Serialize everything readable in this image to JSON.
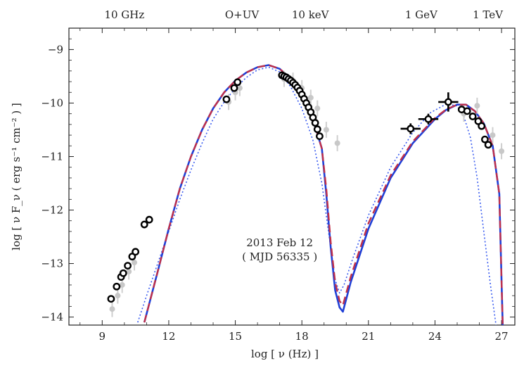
{
  "chart_data": {
    "type": "scatter",
    "xlabel": "log [ ν (Hz) ]",
    "ylabel": "log [ ν F_ν ( erg s⁻¹ cm⁻² ) ]",
    "xlim": [
      7.5,
      27.6
    ],
    "ylim": [
      -14.15,
      -8.6
    ],
    "x_ticks": [
      9,
      12,
      15,
      18,
      21,
      24,
      27
    ],
    "y_ticks": [
      -14,
      -13,
      -12,
      -11,
      -10,
      -9
    ],
    "x_tick_labels": [
      "9",
      "12",
      "15",
      "18",
      "21",
      "24",
      "27"
    ],
    "y_tick_labels": [
      "−14",
      "−13",
      "−12",
      "−11",
      "−10",
      "−9"
    ],
    "top_labels": [
      {
        "x": 10.0,
        "text": "10 GHz"
      },
      {
        "x": 15.3,
        "text": "O+UV"
      },
      {
        "x": 18.38,
        "text": "10 keV"
      },
      {
        "x": 23.38,
        "text": "1 GeV"
      },
      {
        "x": 26.38,
        "text": "1 TeV"
      }
    ],
    "annotation": [
      "2013 Feb 12",
      "( MJD 56335 )"
    ],
    "grid": false,
    "series": [
      {
        "style": "points-black",
        "color": "#000000",
        "points": [
          [
            9.4,
            -13.66
          ],
          [
            9.65,
            -13.43
          ],
          [
            9.85,
            -13.25
          ],
          [
            9.95,
            -13.18
          ],
          [
            10.15,
            -13.04
          ],
          [
            10.35,
            -12.87
          ],
          [
            10.5,
            -12.78
          ],
          [
            10.9,
            -12.27
          ],
          [
            11.12,
            -12.18
          ],
          [
            14.6,
            -9.93
          ],
          [
            14.95,
            -9.72
          ],
          [
            15.1,
            -9.61
          ],
          [
            17.1,
            -9.48
          ],
          [
            17.2,
            -9.5
          ],
          [
            17.3,
            -9.52
          ],
          [
            17.4,
            -9.55
          ],
          [
            17.5,
            -9.58
          ],
          [
            17.6,
            -9.62
          ],
          [
            17.7,
            -9.66
          ],
          [
            17.8,
            -9.71
          ],
          [
            17.9,
            -9.77
          ],
          [
            18.0,
            -9.84
          ],
          [
            18.1,
            -9.92
          ],
          [
            18.2,
            -10.0
          ],
          [
            18.3,
            -10.08
          ],
          [
            18.4,
            -10.17
          ],
          [
            18.5,
            -10.27
          ],
          [
            18.6,
            -10.37
          ],
          [
            18.7,
            -10.49
          ],
          [
            18.8,
            -10.62
          ],
          [
            25.2,
            -10.12
          ],
          [
            25.45,
            -10.15
          ],
          [
            25.7,
            -10.25
          ],
          [
            25.95,
            -10.34
          ],
          [
            26.1,
            -10.43
          ],
          [
            26.25,
            -10.68
          ],
          [
            26.4,
            -10.78
          ]
        ],
        "errorbars": [
          {
            "x": 22.9,
            "y": -10.48,
            "xerr": 0.45,
            "yerr": 0.1
          },
          {
            "x": 23.7,
            "y": -10.3,
            "xerr": 0.45,
            "yerr": 0.1
          },
          {
            "x": 24.6,
            "y": -9.98,
            "xerr": 0.45,
            "yerr": 0.18
          }
        ]
      },
      {
        "style": "points-grey",
        "color": "#c8c8c8",
        "points": [
          [
            9.45,
            -13.85
          ],
          [
            9.7,
            -13.6
          ],
          [
            9.9,
            -13.4
          ],
          [
            10.2,
            -13.15
          ],
          [
            10.45,
            -12.98
          ],
          [
            14.7,
            -9.98
          ],
          [
            15.0,
            -9.8
          ],
          [
            15.2,
            -9.72
          ],
          [
            17.2,
            -9.55
          ],
          [
            17.6,
            -9.58
          ],
          [
            18.0,
            -9.72
          ],
          [
            18.4,
            -9.9
          ],
          [
            18.7,
            -10.1
          ],
          [
            19.1,
            -10.5
          ],
          [
            19.6,
            -10.75
          ],
          [
            25.3,
            -10.2
          ],
          [
            25.9,
            -10.05
          ],
          [
            26.6,
            -10.6
          ],
          [
            27.0,
            -10.9
          ]
        ]
      },
      {
        "name": "",
        "style": "model-solid",
        "color": "#1f3fd6",
        "x": [
          10.9,
          11.5,
          12.0,
          12.5,
          13.0,
          13.5,
          14.0,
          14.5,
          15.0,
          15.5,
          16.0,
          16.5,
          17.0,
          17.5,
          18.0,
          18.5,
          18.9,
          19.1,
          19.3,
          19.5,
          19.7,
          19.85,
          20.2,
          21.0,
          22.0,
          23.0,
          24.0,
          24.5,
          25.0,
          25.4,
          25.8,
          26.2,
          26.6,
          26.9,
          27.05
        ],
        "y": [
          -14.1,
          -13.15,
          -12.35,
          -11.6,
          -11.0,
          -10.5,
          -10.1,
          -9.8,
          -9.58,
          -9.43,
          -9.33,
          -9.29,
          -9.36,
          -9.55,
          -9.85,
          -10.3,
          -10.85,
          -11.7,
          -12.7,
          -13.5,
          -13.82,
          -13.9,
          -13.35,
          -12.35,
          -11.4,
          -10.75,
          -10.3,
          -10.13,
          -10.03,
          -10.03,
          -10.15,
          -10.38,
          -10.8,
          -11.7,
          -14.15
        ]
      },
      {
        "name": "",
        "style": "model-dashed",
        "color": "#c0304a",
        "x": [
          10.9,
          11.5,
          12.0,
          12.5,
          13.0,
          13.5,
          14.0,
          14.5,
          15.0,
          15.5,
          16.0,
          16.5,
          17.0,
          17.5,
          18.0,
          18.5,
          18.9,
          19.1,
          19.3,
          19.5,
          19.7,
          19.85,
          20.2,
          21.0,
          22.0,
          23.0,
          24.0,
          24.5,
          25.0,
          25.4,
          25.8,
          26.2,
          26.6,
          26.9,
          27.05
        ],
        "y": [
          -14.1,
          -13.15,
          -12.35,
          -11.6,
          -11.0,
          -10.5,
          -10.1,
          -9.8,
          -9.58,
          -9.43,
          -9.33,
          -9.29,
          -9.36,
          -9.55,
          -9.85,
          -10.3,
          -10.85,
          -11.6,
          -12.6,
          -13.35,
          -13.7,
          -13.78,
          -13.25,
          -12.25,
          -11.35,
          -10.72,
          -10.28,
          -10.12,
          -10.03,
          -10.03,
          -10.15,
          -10.38,
          -10.8,
          -11.7,
          -14.15
        ]
      },
      {
        "name": "",
        "style": "model-dotted",
        "color": "#3a5cf0",
        "x": [
          10.6,
          11.0,
          11.5,
          12.0,
          12.5,
          13.0,
          13.5,
          14.0,
          14.5,
          15.0,
          15.5,
          16.0,
          16.5,
          17.0,
          17.5,
          18.0,
          18.5,
          18.9,
          19.2,
          19.5,
          19.7,
          19.9,
          20.3,
          21.0,
          22.0,
          23.0,
          23.8,
          24.5,
          25.0,
          25.3,
          25.6,
          25.9,
          26.2,
          26.5,
          26.75
        ],
        "y": [
          -14.1,
          -13.6,
          -13.0,
          -12.4,
          -11.8,
          -11.25,
          -10.75,
          -10.3,
          -9.98,
          -9.72,
          -9.52,
          -9.38,
          -9.33,
          -9.42,
          -9.7,
          -10.1,
          -10.7,
          -11.5,
          -12.4,
          -13.3,
          -13.55,
          -13.4,
          -12.9,
          -12.1,
          -11.2,
          -10.55,
          -10.18,
          -10.02,
          -10.05,
          -10.25,
          -10.65,
          -11.4,
          -12.4,
          -13.4,
          -14.15
        ]
      }
    ]
  }
}
